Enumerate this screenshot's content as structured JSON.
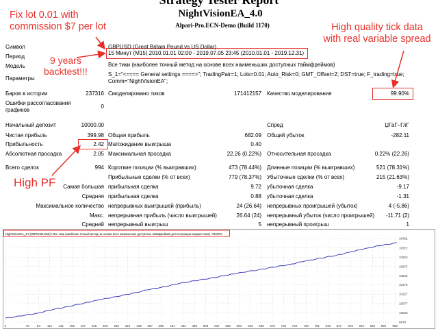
{
  "report": {
    "title": "Strategy Tester Report",
    "ea_name": "NightVisionEA_4.0",
    "server": "Alpari-Pro.ECN-Demo (Build 1170)"
  },
  "annotations": {
    "top_left_1": "Fix lot 0.01 with",
    "top_left_2": "commission $7 per lot",
    "top_right_1": "High quality tick data",
    "top_right_2": "with real variable spread",
    "years_1": "9 years",
    "years_2": "backtest!!!",
    "pf": "High PF"
  },
  "colors": {
    "annotation": "#e8302a",
    "equity_line": "#2929b3",
    "grid": "#c8c8c8"
  },
  "info": {
    "symbol_label": "Символ",
    "symbol_value": "GBPUSD (Great Britain Pound vs US Dollar)",
    "period_label": "Период",
    "period_value": "15 Минут (M15)  2010.01.01 02:00 - 2019.07.05 23:45 (2010.01.01 - 2019.12.31)",
    "model_label": "Модель",
    "model_value": "Все тики (наиболее точный метод на основе всех наименьших доступных таймфреймов)",
    "params_label": "Параметры",
    "params_line1": "S_1=\"<==== General settings ====>\"; TradingPair=1; Lots=0.01; Auto_Risk=0; GMT_Offset=2; DST=true; F_trading=true;",
    "params_line2": "Comm=\"NightVisionEA\";"
  },
  "stats": {
    "bars_label": "Баров в истории",
    "bars_value": "237316",
    "ticks_label": "Смоделировано тиков",
    "ticks_value": "171412157",
    "quality_label": "Качество моделирования",
    "quality_value": "99.90%",
    "errors_label_1": "Ошибки рассогласования",
    "errors_label_2": "графиков",
    "errors_value": "0",
    "deposit_label": "Начальный депозит",
    "deposit_value": "10000.00",
    "spread_label": "Спред",
    "spread_value": "ЏГаГ–ГлГ",
    "netprofit_label": "Чистая прибыль",
    "netprofit_value": "399.98",
    "grossprofit_label": "Общая прибыль",
    "grossprofit_value": "682.09",
    "grossloss_label": "Общий убыток",
    "grossloss_value": "-282.11",
    "pf_label": "Прибыльность",
    "pf_value": "2.42",
    "expected_label": "Матожидание выигрыша",
    "expected_value": "0.40",
    "absdd_label": "Абсолютная просадка",
    "absdd_value": "2.05",
    "maxdd_label": "Максимальная просадка",
    "maxdd_value": "22.26 (0.22%)",
    "reldd_label": "Относительная просадка",
    "reldd_value": "0.22% (22.26)",
    "trades_label": "Всего сделок",
    "trades_value": "994",
    "short_label": "Короткие позиции (% выигравших)",
    "short_value": "473 (78.44%)",
    "long_label": "Длинные позиции (% выигравших)",
    "long_value": "521 (78.31%)",
    "profit_trades_label": "Прибыльные сделки (% от всех)",
    "profit_trades_value": "779 (78.37%)",
    "loss_trades_label": "Убыточные сделки (% от всех)",
    "loss_trades_value": "215 (21.63%)",
    "largest_label": "Самая большая",
    "largest_profit_label": "прибыльная сделка",
    "largest_profit_value": "9.72",
    "largest_loss_label": "убыточная сделка",
    "largest_loss_value": "-9.17",
    "average_label": "Средняя",
    "avg_profit_label": "прибыльная сделка",
    "avg_profit_value": "0.88",
    "avg_loss_label": "убыточная сделка",
    "avg_loss_value": "-1.31",
    "maxcount_label": "Максимальное количество",
    "maxcons_wins_label": "непрерывных выигрышей (прибыль)",
    "maxcons_wins_value": "24 (26.64)",
    "maxcons_losses_label": "непрерывных проигрышей (убыток)",
    "maxcons_losses_value": "4 (-5.86)",
    "max_label": "Макс.",
    "maxcons_profit_label": "непрерывная прибыль (число выигрышей)",
    "maxcons_profit_value": "26.64 (24)",
    "maxcons_loss_label": "непрерывный убыток (число проигрышей)",
    "maxcons_loss_value": "-11.71 (2)",
    "avgcons_label": "Средний",
    "avgcons_wins_label": "непрерывный выигрыш",
    "avgcons_wins_value": "5",
    "avgcons_losses_label": "непрерывный проигрыш",
    "avgcons_losses_value": "1"
  },
  "chart_data": {
    "type": "line",
    "title": "NightVisionEA_4.0 (GBPUSD,M15) / Все тики (наиболее точный метод на основе всех наименьших доступных таймфреймов для генерации каждого тика) / 99.90%",
    "xlabel": "",
    "ylabel": "",
    "x_ticks": [
      0,
      57,
      84,
      112,
      141,
      169,
      197,
      225,
      253,
      282,
      310,
      339,
      367,
      395,
      424,
      452,
      480,
      508,
      537,
      565,
      593,
      622,
      650,
      678,
      706,
      734,
      763,
      791,
      819,
      847,
      876,
      904,
      932,
      960,
      989
    ],
    "y_ticks": [
      9979,
      10028,
      10077,
      10127,
      10176,
      10225,
      10274,
      10323,
      10372,
      10422
    ],
    "ylim": [
      9979,
      10422
    ],
    "xlim": [
      0,
      994
    ],
    "x": [
      0,
      40,
      80,
      120,
      160,
      200,
      240,
      280,
      320,
      360,
      400,
      440,
      480,
      520,
      560,
      600,
      640,
      680,
      720,
      760,
      800,
      840,
      880,
      920,
      960,
      994
    ],
    "y": [
      10000,
      10012,
      10026,
      10045,
      10062,
      10080,
      10098,
      10114,
      10130,
      10150,
      10166,
      10183,
      10198,
      10212,
      10226,
      10243,
      10255,
      10270,
      10284,
      10302,
      10318,
      10333,
      10352,
      10372,
      10388,
      10399
    ]
  }
}
